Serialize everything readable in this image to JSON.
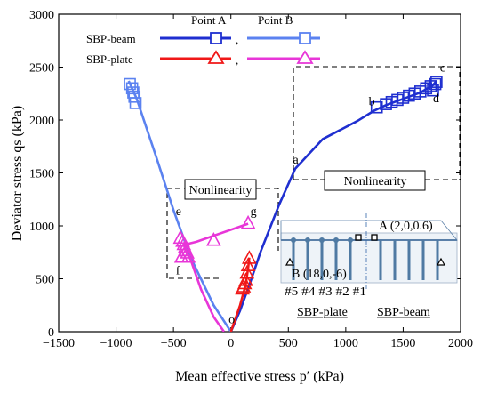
{
  "chart_data": {
    "type": "line",
    "xlabel": "Mean effective stress p′ (kPa)",
    "ylabel": "Deviator stress qs (kPa)",
    "xlim": [
      -1500,
      2000
    ],
    "ylim": [
      0,
      3000
    ],
    "xticks": [
      "−1500",
      "−1000",
      "−500",
      "0",
      "500",
      "1000",
      "1500",
      "2000"
    ],
    "yticks": [
      "0",
      "500",
      "1000",
      "1500",
      "2000",
      "2500",
      "3000"
    ],
    "legend": {
      "placement": "top-left",
      "col_headers": [
        "Point A",
        "Point B"
      ],
      "rows": [
        {
          "label": "SBP-beam",
          "separator": ","
        },
        {
          "label": "SBP-plate",
          "separator": ","
        }
      ]
    },
    "series": [
      {
        "name": "SBP-beam (Point A)",
        "color": "#1f2fd0",
        "marker": "square",
        "x": [
          0,
          80,
          160,
          260,
          420,
          560,
          800,
          1100,
          1250,
          1350,
          1500,
          1650,
          1760,
          1790
        ],
        "y": [
          0,
          200,
          440,
          760,
          1200,
          1540,
          1820,
          1990,
          2090,
          2140,
          2200,
          2260,
          2330,
          2370
        ],
        "marker_x": [
          1270,
          1350,
          1400,
          1450,
          1500,
          1550,
          1600,
          1650,
          1700,
          1740,
          1780,
          1790,
          1760
        ],
        "marker_y": [
          2120,
          2150,
          2170,
          2190,
          2210,
          2230,
          2250,
          2270,
          2300,
          2320,
          2340,
          2360,
          2280
        ]
      },
      {
        "name": "SBP-beam (Point B)",
        "color": "#5b82f0",
        "marker": "square",
        "x": [
          0,
          -150,
          -350,
          -500,
          -650,
          -820,
          -890
        ],
        "y": [
          0,
          250,
          700,
          1150,
          1650,
          2200,
          2370
        ],
        "marker_x": [
          -880,
          -860,
          -850,
          -840,
          -830
        ],
        "marker_y": [
          2340,
          2300,
          2260,
          2220,
          2160
        ]
      },
      {
        "name": "SBP-plate (Point A)",
        "color": "#f01818",
        "marker": "triangle",
        "x": [
          0,
          80,
          130,
          150,
          160
        ],
        "y": [
          0,
          250,
          450,
          600,
          700
        ],
        "marker_x": [
          100,
          110,
          120,
          130,
          140,
          150,
          160
        ],
        "marker_y": [
          400,
          420,
          450,
          480,
          550,
          620,
          690
        ]
      },
      {
        "name": "SBP-plate (Point B)",
        "color": "#e836d8",
        "marker": "triangle",
        "x": [
          -60,
          -150,
          -260,
          -350,
          -380,
          -410,
          -300,
          150
        ],
        "y": [
          0,
          140,
          400,
          680,
          740,
          820,
          850,
          1020
        ],
        "marker_x": [
          -440,
          -420,
          -410,
          -400,
          -390,
          -380,
          -370,
          -430,
          -150,
          150
        ],
        "marker_y": [
          880,
          850,
          820,
          790,
          760,
          740,
          700,
          700,
          860,
          1020
        ]
      }
    ],
    "annotations": [
      {
        "text": "a",
        "x": 540,
        "y": 1590
      },
      {
        "text": "b",
        "x": 1200,
        "y": 2140
      },
      {
        "text": "c",
        "x": 1820,
        "y": 2460
      },
      {
        "text": "d",
        "x": 1760,
        "y": 2170
      },
      {
        "text": "e",
        "x": -480,
        "y": 1100
      },
      {
        "text": "f",
        "x": -480,
        "y": 540
      },
      {
        "text": "g",
        "x": 170,
        "y": 1100
      },
      {
        "text": "o",
        "x": -20,
        "y": 80
      },
      {
        "text": "Nonlinearity",
        "x": -210,
        "y": 1320
      },
      {
        "text": "Nonlinearity",
        "x": 1230,
        "y": 1440
      }
    ],
    "inset": {
      "point_a_label": "A (2,0,0.6)",
      "point_b_label": "B (18,0,-6)",
      "pile_labels": "#5 #4 #3 #2 #1",
      "left_label": "SBP-plate",
      "right_label": "SBP-beam"
    }
  }
}
